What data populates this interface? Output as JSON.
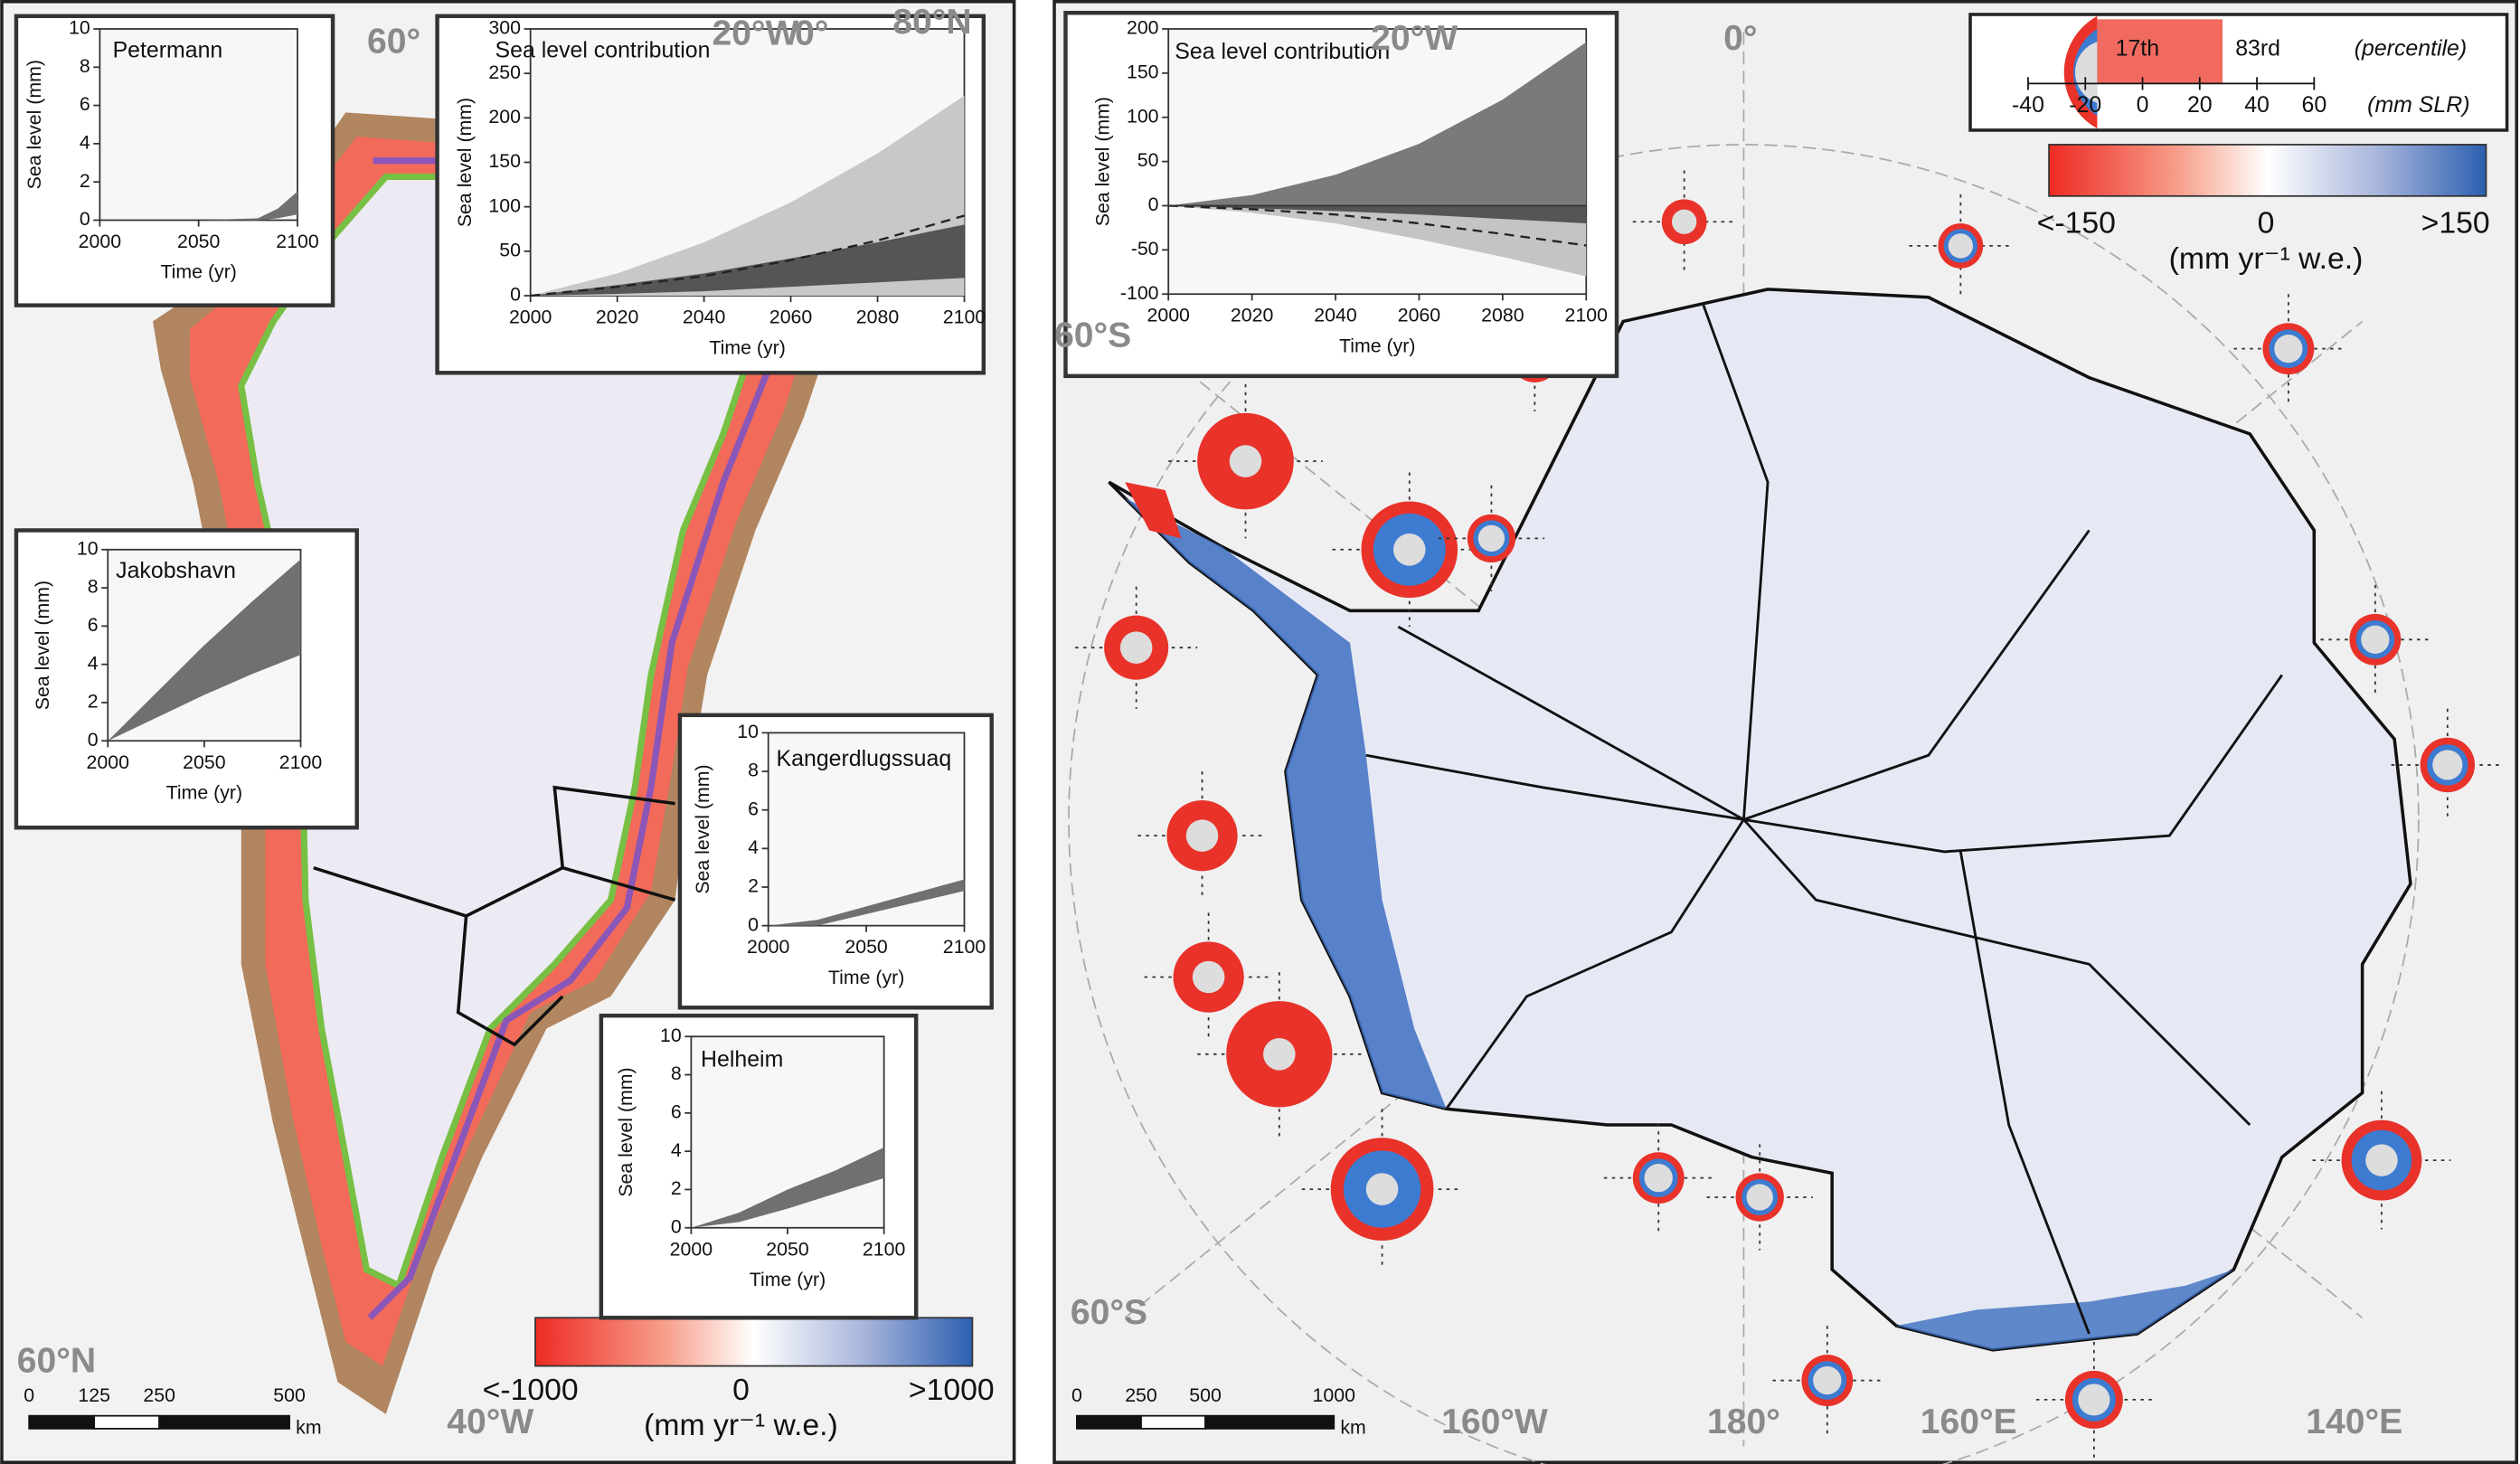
{
  "greenland": {
    "geo_labels": [
      "60°",
      "20°W",
      "0°",
      "80°N",
      "60°N",
      "40°W"
    ],
    "scale_ticks": [
      0,
      125,
      250,
      500
    ],
    "scale_unit": "km",
    "colorbar": {
      "min_label": "<-1000",
      "mid_label": "0",
      "max_label": ">1000",
      "unit": "(mm yr⁻¹ w.e.)"
    },
    "insets": [
      {
        "title": "Petermann",
        "ylabel": "Sea level (mm)",
        "xlabel": "Time (yr)",
        "xlim": [
          2000,
          2100
        ],
        "ylim": [
          0,
          10
        ],
        "xticks": [
          2000,
          2050,
          2100
        ],
        "yticks": [
          0,
          2,
          4,
          6,
          8,
          10
        ],
        "x": [
          2000,
          2050,
          2080,
          2090,
          2100
        ],
        "bands": [
          {
            "color": "#707070",
            "lower": [
              0,
              0,
              0,
              0.1,
              0.3
            ],
            "upper": [
              0,
              0,
              0.1,
              0.6,
              1.5
            ]
          }
        ],
        "lines": []
      },
      {
        "title": "Sea level contribution",
        "ylabel": "Sea level (mm)",
        "xlabel": "Time (yr)",
        "xlim": [
          2000,
          2100
        ],
        "ylim": [
          0,
          300
        ],
        "xticks": [
          2000,
          2020,
          2040,
          2060,
          2080,
          2100
        ],
        "yticks": [
          0,
          50,
          100,
          150,
          200,
          250,
          300
        ],
        "x": [
          2000,
          2020,
          2040,
          2060,
          2080,
          2100
        ],
        "bands": [
          {
            "color": "#c8c8c8",
            "lower": [
              0,
              0,
              0,
              0,
              0,
              0
            ],
            "upper": [
              0,
              25,
              60,
              105,
              160,
              225
            ]
          },
          {
            "color": "#555555",
            "lower": [
              0,
              2,
              5,
              10,
              15,
              20
            ],
            "upper": [
              0,
              12,
              25,
              42,
              60,
              80
            ]
          }
        ],
        "lines": [
          {
            "color": "#222222",
            "values": [
              0,
              10,
              22,
              40,
              62,
              90
            ]
          }
        ]
      },
      {
        "title": "Jakobshavn",
        "ylabel": "Sea level (mm)",
        "xlabel": "Time (yr)",
        "xlim": [
          2000,
          2100
        ],
        "ylim": [
          0,
          10
        ],
        "xticks": [
          2000,
          2050,
          2100
        ],
        "yticks": [
          0,
          2,
          4,
          6,
          8,
          10
        ],
        "x": [
          2000,
          2025,
          2050,
          2075,
          2100
        ],
        "bands": [
          {
            "color": "#707070",
            "lower": [
              0,
              1.2,
              2.4,
              3.5,
              4.5
            ],
            "upper": [
              0,
              2.5,
              5,
              7.3,
              9.5
            ]
          }
        ],
        "lines": []
      },
      {
        "title": "Kangerdlugssuaq",
        "ylabel": "Sea level (mm)",
        "xlabel": "Time (yr)",
        "xlim": [
          2000,
          2100
        ],
        "ylim": [
          0,
          10
        ],
        "xticks": [
          2000,
          2050,
          2100
        ],
        "yticks": [
          0,
          2,
          4,
          6,
          8,
          10
        ],
        "x": [
          2000,
          2025,
          2050,
          2075,
          2100
        ],
        "bands": [
          {
            "color": "#707070",
            "lower": [
              0,
              0,
              0.6,
              1.2,
              1.8
            ],
            "upper": [
              0,
              0.3,
              1.0,
              1.7,
              2.4
            ]
          }
        ],
        "lines": []
      },
      {
        "title": "Helheim",
        "ylabel": "Sea level (mm)",
        "xlabel": "Time (yr)",
        "xlim": [
          2000,
          2100
        ],
        "ylim": [
          0,
          10
        ],
        "xticks": [
          2000,
          2050,
          2100
        ],
        "yticks": [
          0,
          2,
          4,
          6,
          8,
          10
        ],
        "x": [
          2000,
          2025,
          2050,
          2075,
          2100
        ],
        "bands": [
          {
            "color": "#707070",
            "lower": [
              0,
              0.3,
              1,
              1.8,
              2.6
            ],
            "upper": [
              0,
              0.8,
              2,
              3,
              4.2
            ]
          }
        ],
        "lines": []
      }
    ]
  },
  "antarctica": {
    "geo_labels": [
      "20°W",
      "0°",
      "60°S",
      "60°S",
      "160°W",
      "180°",
      "160°E",
      "140°E"
    ],
    "scale_ticks": [
      0,
      250,
      500,
      1000
    ],
    "scale_unit": "km",
    "colorbar": {
      "min_label": "<-150",
      "mid_label": "0",
      "max_label": ">150",
      "unit": "(mm yr⁻¹ w.e.)"
    },
    "legend": {
      "low": "17th",
      "high": "83rd",
      "percentile_label": "(percentile)",
      "ticks": [
        -40,
        -20,
        0,
        20,
        40,
        60
      ],
      "unit": "(mm SLR)"
    },
    "inset": {
      "title": "Sea level contribution",
      "ylabel": "Sea level (mm)",
      "xlabel": "Time (yr)",
      "xlim": [
        2000,
        2100
      ],
      "ylim": [
        -100,
        200
      ],
      "xticks": [
        2000,
        2020,
        2040,
        2060,
        2080,
        2100
      ],
      "yticks": [
        -100,
        -50,
        0,
        50,
        100,
        150,
        200
      ],
      "x": [
        2000,
        2020,
        2040,
        2060,
        2080,
        2100
      ],
      "bands": [
        {
          "color": "#7a7a7a",
          "lower": [
            0,
            0,
            0,
            0,
            0,
            0
          ],
          "upper": [
            0,
            12,
            35,
            70,
            120,
            185
          ]
        },
        {
          "color": "#c4c4c4",
          "lower": [
            0,
            -8,
            -20,
            -38,
            -58,
            -80
          ],
          "upper": [
            0,
            -2,
            -4,
            -7,
            -10,
            -12
          ]
        },
        {
          "color": "#555555",
          "lower": [
            0,
            -3,
            -6,
            -10,
            -15,
            -20
          ],
          "upper": [
            0,
            0,
            0,
            0,
            0,
            0
          ]
        }
      ],
      "lines": [
        {
          "color": "#222222",
          "values": [
            0,
            -4,
            -10,
            -20,
            -32,
            -45
          ]
        }
      ]
    }
  }
}
